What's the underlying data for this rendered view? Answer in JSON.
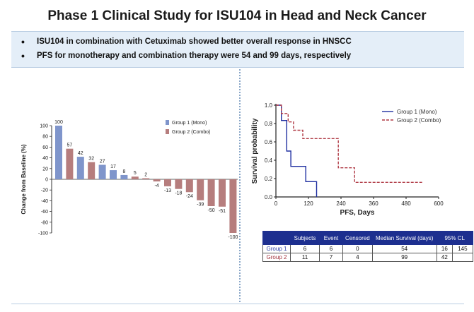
{
  "title": "Phase 1 Clinical Study for ISU104 in Head and Neck Cancer",
  "bullets": [
    "ISU104 in combination with Cetuximab showed better overall response in HNSCC",
    "PFS for monotherapy and combination therapy were 54 and 99 days, respectively"
  ],
  "colors": {
    "mono": "#7f95cb",
    "combo": "#b67d7d",
    "km_mono": "#1f2fa0",
    "km_combo": "#b03a45",
    "banner": "#e4eef8",
    "table_header": "#1d2f8f"
  },
  "chart_data": [
    {
      "type": "bar",
      "title": "",
      "xlabel": "",
      "ylabel": "Change from Baseline (%)",
      "ylim": [
        -100,
        100
      ],
      "yticks": [
        "100",
        "80",
        "60",
        "40",
        "20",
        "0",
        "-20",
        "-40",
        "-60",
        "-80",
        "-100"
      ],
      "legend": [
        "Group 1 (Mono)",
        "Group 2 (Combo)"
      ],
      "values": [
        100,
        57,
        42,
        32,
        27,
        17,
        8,
        5,
        2,
        -4,
        -13,
        -18,
        -24,
        -39,
        -50,
        -51,
        -100
      ],
      "labels": [
        "100",
        "57",
        "42",
        "32",
        "27",
        "17",
        "8",
        "5",
        "2",
        "-4",
        "-13",
        "-18",
        "-24",
        "-39",
        "-50",
        "-51",
        "-100"
      ],
      "groups": [
        "mono",
        "combo",
        "mono",
        "combo",
        "mono",
        "mono",
        "mono",
        "combo",
        "combo",
        "combo",
        "combo",
        "combo",
        "combo",
        "combo",
        "combo",
        "combo",
        "combo"
      ]
    },
    {
      "type": "line",
      "title": "",
      "xlabel": "PFS, Days",
      "ylabel": "Survival probability",
      "xlim": [
        0,
        600
      ],
      "ylim": [
        0,
        1
      ],
      "xticks": [
        "0",
        "120",
        "240",
        "360",
        "480",
        "600"
      ],
      "yticks": [
        "0.0",
        "0.2",
        "0.4",
        "0.6",
        "0.8",
        "1.0"
      ],
      "series": [
        {
          "name": "Group 1 (Mono)",
          "style": "solid",
          "x": [
            0,
            20,
            20,
            40,
            40,
            55,
            55,
            110,
            110,
            150,
            150
          ],
          "y": [
            1.0,
            1.0,
            0.833,
            0.833,
            0.5,
            0.5,
            0.333,
            0.333,
            0.167,
            0.167,
            0.0
          ]
        },
        {
          "name": "Group 2 (Combo)",
          "style": "dashed",
          "x": [
            0,
            20,
            20,
            45,
            45,
            65,
            65,
            99,
            99,
            230,
            230,
            290,
            290,
            540
          ],
          "y": [
            1.0,
            1.0,
            0.909,
            0.909,
            0.818,
            0.818,
            0.727,
            0.727,
            0.636,
            0.636,
            0.318,
            0.318,
            0.159,
            0.159
          ]
        }
      ]
    },
    {
      "type": "table",
      "columns": [
        "",
        "Subjects",
        "Event",
        "Censored",
        "Median Survival (days)",
        "95% CL",
        ""
      ],
      "rows": [
        [
          "Group 1",
          "6",
          "6",
          "0",
          "54",
          "16",
          "145"
        ],
        [
          "Group 2",
          "11",
          "7",
          "4",
          "99",
          "42",
          ""
        ]
      ]
    }
  ]
}
